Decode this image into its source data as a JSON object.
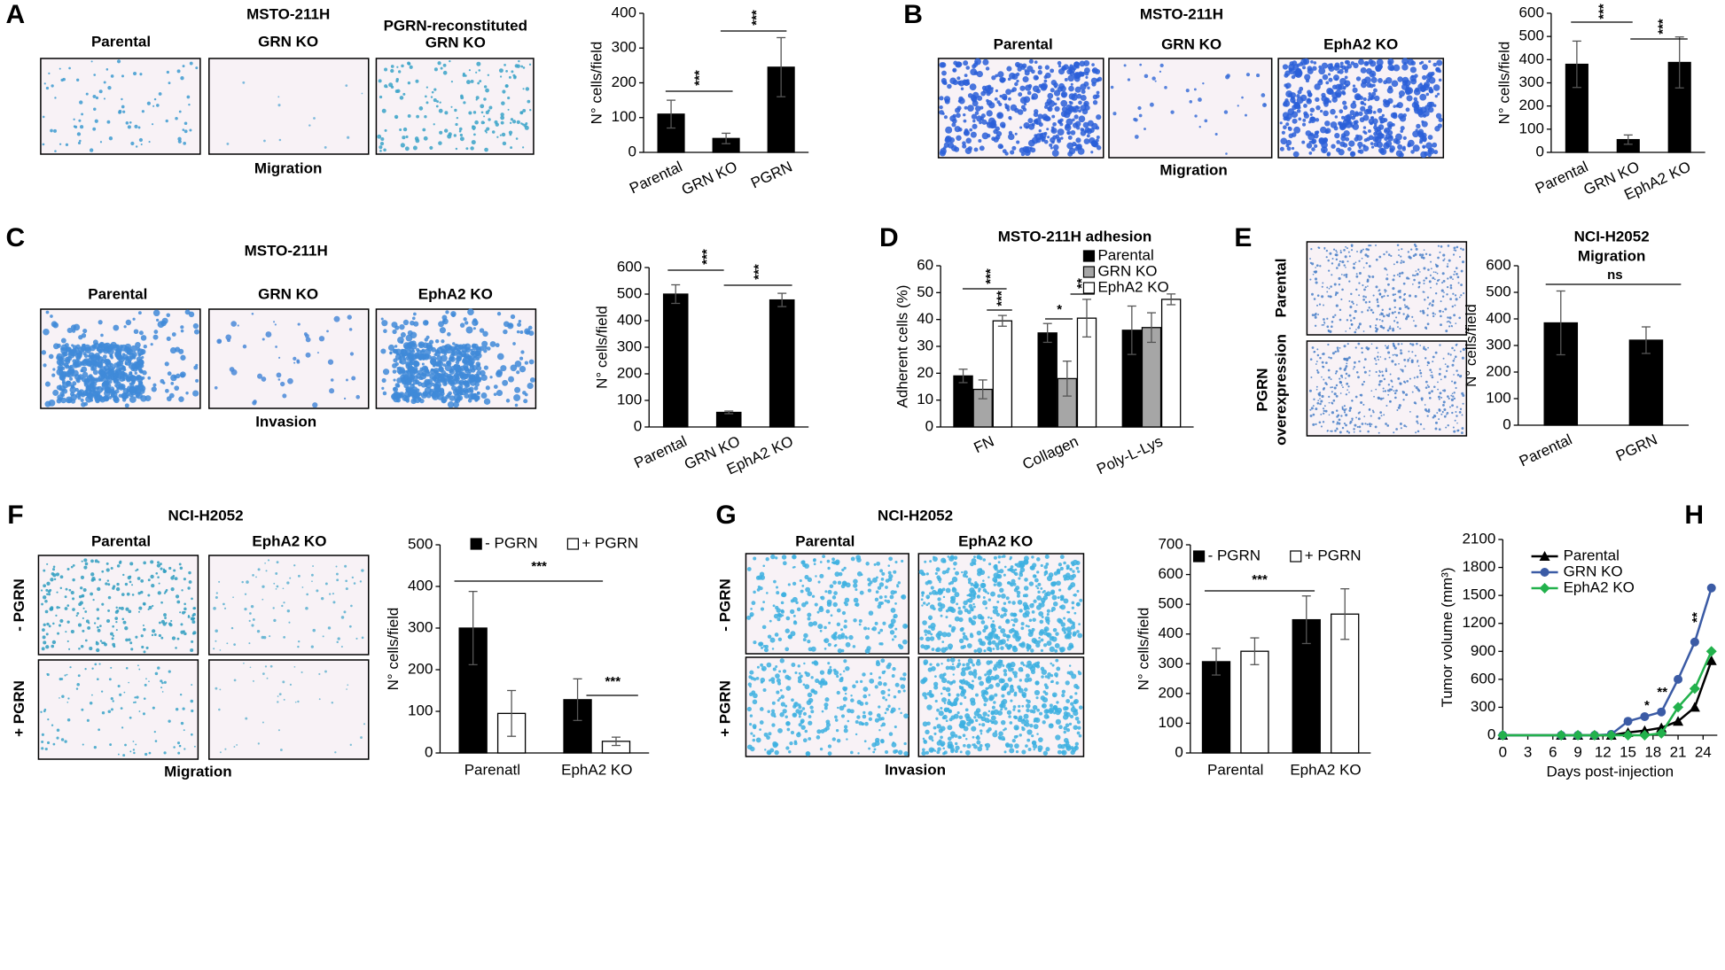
{
  "panels": [
    {
      "letter": "A",
      "title": "MSTO-211H",
      "image_labels": [
        "Parental",
        "GRN KO",
        [
          "PGRN-reconstituted",
          "GRN KO"
        ]
      ],
      "caption": "Migration"
    },
    {
      "letter": "B",
      "title": "MSTO-211H",
      "image_labels": [
        "Parental",
        "GRN KO",
        "EphA2 KO"
      ],
      "caption": "Migration"
    },
    {
      "letter": "C",
      "title": "MSTO-211H",
      "image_labels": [
        "Parental",
        "GRN KO",
        "EphA2 KO"
      ],
      "caption": "Invasion"
    },
    {
      "letter": "D"
    },
    {
      "letter": "E",
      "row_labels": [
        "Parental",
        [
          "PGRN",
          "overexpression"
        ]
      ]
    },
    {
      "letter": "F",
      "title": "NCI-H2052",
      "image_labels": [
        "Parental",
        "EphA2 KO"
      ],
      "row_labels": [
        "- PGRN",
        "+ PGRN"
      ],
      "caption": "Migration"
    },
    {
      "letter": "G",
      "title": "NCI-H2052",
      "image_labels": [
        "Parental",
        "EphA2 KO"
      ],
      "row_labels": [
        "- PGRN",
        "+ PGRN"
      ],
      "caption": "Invasion"
    },
    {
      "letter": "H"
    }
  ],
  "chart_data": [
    {
      "type": "bar",
      "categories": [
        "Parental",
        "GRN KO",
        "PGRN"
      ],
      "values": [
        110,
        40,
        245
      ],
      "errors": [
        40,
        15,
        85
      ],
      "color": "#000000",
      "ylim": [
        0,
        400
      ],
      "yticks": [
        0,
        100,
        200,
        300,
        400
      ],
      "ylabel": "N° cells/field",
      "annotations": [
        "***",
        "***"
      ]
    },
    {
      "type": "bar",
      "categories": [
        "Parental",
        "GRN KO",
        "EphA2 KO"
      ],
      "values": [
        380,
        55,
        388
      ],
      "errors": [
        100,
        20,
        110
      ],
      "color": "#000000",
      "ylim": [
        0,
        600
      ],
      "yticks": [
        0,
        100,
        200,
        300,
        400,
        500,
        600
      ],
      "ylabel": "N° cells/field",
      "annotations": [
        "***",
        "***"
      ]
    },
    {
      "type": "bar",
      "categories": [
        "Parental",
        "GRN KO",
        "EphA2 KO"
      ],
      "values": [
        500,
        55,
        478
      ],
      "errors": [
        35,
        5,
        25
      ],
      "color": "#000000",
      "ylim": [
        0,
        600
      ],
      "yticks": [
        0,
        100,
        200,
        300,
        400,
        500,
        600
      ],
      "ylabel": "N° cells/field",
      "annotations": [
        "***",
        "***"
      ]
    },
    {
      "type": "bar",
      "title": "MSTO-211H adhesion",
      "categories": [
        "FN",
        "Collagen",
        "Poly-L-Lys"
      ],
      "series": [
        {
          "name": "Parental",
          "color": "#000000",
          "values": [
            19,
            35,
            36
          ],
          "errors": [
            2.5,
            3.5,
            9
          ]
        },
        {
          "name": "GRN KO",
          "color": "#a6a6a6",
          "values": [
            14,
            18,
            37
          ],
          "errors": [
            3.5,
            6.5,
            5.5
          ]
        },
        {
          "name": "EphA2 KO",
          "color": "#ffffff",
          "values": [
            39.5,
            40.5,
            47.5
          ],
          "errors": [
            2,
            7,
            2
          ]
        }
      ],
      "ylim": [
        0,
        60
      ],
      "yticks": [
        0,
        10,
        20,
        30,
        40,
        50,
        60
      ],
      "ylabel": "Adherent cells (%)",
      "annotations": [
        "***",
        "***",
        "*",
        "**"
      ]
    },
    {
      "type": "bar",
      "title": "NCI-H2052",
      "subtitle": "Migration",
      "categories": [
        "Parental",
        "PGRN"
      ],
      "values": [
        385,
        320
      ],
      "errors": [
        120,
        50
      ],
      "color": "#000000",
      "ylim": [
        0,
        600
      ],
      "yticks": [
        0,
        100,
        200,
        300,
        400,
        500,
        600
      ],
      "ylabel": "N° cells/field",
      "annotations": [
        "ns"
      ]
    },
    {
      "type": "bar",
      "categories": [
        "Parenatl",
        "EphA2 KO"
      ],
      "series": [
        {
          "name": "- PGRN",
          "color": "#000000",
          "values": [
            300,
            128
          ],
          "errors": [
            88,
            50
          ]
        },
        {
          "name": "+ PGRN",
          "color": "#ffffff",
          "values": [
            95,
            28
          ],
          "errors": [
            55,
            10
          ]
        }
      ],
      "ylim": [
        0,
        500
      ],
      "yticks": [
        0,
        100,
        200,
        300,
        400,
        500
      ],
      "ylabel": "N° cells/field",
      "annotations": [
        "***",
        "***"
      ]
    },
    {
      "type": "bar",
      "categories": [
        "Parental",
        "EphA2 KO"
      ],
      "series": [
        {
          "name": "- PGRN",
          "color": "#000000",
          "values": [
            307,
            448
          ],
          "errors": [
            45,
            80
          ]
        },
        {
          "name": "+ PGRN",
          "color": "#ffffff",
          "values": [
            342,
            467
          ],
          "errors": [
            45,
            85
          ]
        }
      ],
      "ylim": [
        0,
        700
      ],
      "yticks": [
        0,
        100,
        200,
        300,
        400,
        500,
        600,
        700
      ],
      "ylabel": "N° cells/field",
      "annotations": [
        "***"
      ]
    },
    {
      "type": "line",
      "x": [
        0,
        7,
        9,
        11,
        13,
        15,
        17,
        19,
        21,
        23,
        25
      ],
      "series": [
        {
          "name": "Parental",
          "color": "#000000",
          "marker": "triangle",
          "values": [
            0,
            0,
            0,
            0,
            0,
            30,
            50,
            80,
            150,
            300,
            800
          ]
        },
        {
          "name": "GRN KO",
          "color": "#3b5ba5",
          "marker": "circle",
          "values": [
            0,
            0,
            0,
            0,
            10,
            150,
            200,
            250,
            600,
            1000,
            1580
          ]
        },
        {
          "name": "EphA2 KO",
          "color": "#22b14c",
          "marker": "diamond",
          "values": [
            0,
            0,
            0,
            0,
            0,
            0,
            0,
            20,
            300,
            500,
            900
          ]
        }
      ],
      "xlim": [
        0,
        25.7
      ],
      "xticks": [
        0,
        3,
        6,
        9,
        12,
        15,
        18,
        21,
        24
      ],
      "ylim": [
        0,
        2100
      ],
      "yticks": [
        0,
        300,
        600,
        900,
        1200,
        1500,
        1800,
        2100
      ],
      "xlabel": "Days post-injection",
      "ylabel": "Tumor volume (mm³)",
      "annotations": [
        "*",
        "**",
        "**"
      ]
    }
  ]
}
